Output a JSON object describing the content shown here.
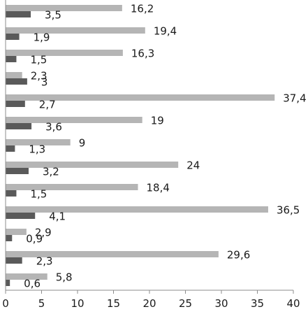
{
  "chart_data": {
    "type": "bar",
    "orientation": "horizontal",
    "xlim": [
      0,
      40
    ],
    "x_ticks": [
      "0",
      "5",
      "10",
      "15",
      "20",
      "25",
      "30",
      "35",
      "40"
    ],
    "legend": "none",
    "grid": false,
    "colors": {
      "series_light": "#b5b5b5",
      "series_dark": "#5a5a5a"
    },
    "series": [
      {
        "values": [
          16.2,
          19.4,
          16.3,
          2.3,
          37.4,
          19,
          9,
          24,
          18.4,
          36.5,
          2.9,
          29.6,
          5.8
        ],
        "labels": [
          "16,2",
          "19,4",
          "16,3",
          "2,3",
          "37,4",
          "19",
          "9",
          "24",
          "18,4",
          "36,5",
          "2,9",
          "29,6",
          "5,8"
        ]
      },
      {
        "values": [
          3.5,
          1.9,
          1.5,
          3,
          2.7,
          3.6,
          1.3,
          3.2,
          1.5,
          4.1,
          0.9,
          2.3,
          0.6
        ],
        "labels": [
          "3,5",
          "1,9",
          "1,5",
          "3",
          "2,7",
          "3,6",
          "1,3",
          "3,2",
          "1,5",
          "4,1",
          "0,9",
          "2,3",
          "0,6"
        ]
      }
    ]
  }
}
